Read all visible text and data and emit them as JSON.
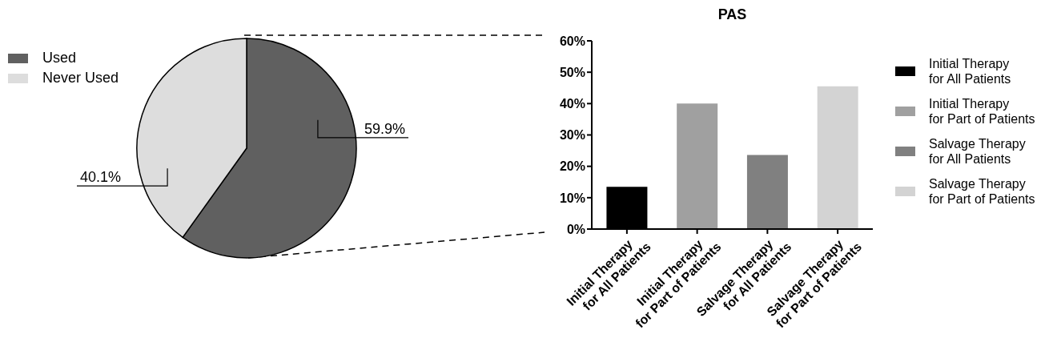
{
  "chart_data": [
    {
      "type": "pie",
      "categories": [
        "Used",
        "Never Used"
      ],
      "values": [
        59.9,
        40.1
      ],
      "colors": [
        "#606060",
        "#dddddd"
      ],
      "value_labels": [
        "59.9%",
        "40.1%"
      ],
      "legend": "top left"
    },
    {
      "type": "bar",
      "title": "PAS",
      "categories": [
        "Initial Therapy for All Patients",
        "Initial Therapy for Part of Patients",
        "Salvage Therapy for All Patients",
        "Salvage Therapy for Part of Patients"
      ],
      "stacked": true,
      "series": [
        {
          "name": "Initial Therapy for All Patients",
          "color": "#000000",
          "values": [
            13.5,
            null,
            null,
            null
          ]
        },
        {
          "name": "Initial Therapy for Part of Patients",
          "color": "#a0a0a0",
          "values": [
            null,
            40,
            null,
            null
          ]
        },
        {
          "name": "Salvage Therapy for All Patients",
          "color": "#808080",
          "values": [
            null,
            null,
            23.6,
            null
          ]
        },
        {
          "name": "Salvage Therapy for Part of Patients",
          "color": "#d3d3d3",
          "values": [
            null,
            null,
            null,
            45.5
          ]
        }
      ],
      "ylim": [
        0,
        60
      ],
      "yticks": [
        {
          "value": 0,
          "label": "0%"
        },
        {
          "value": 10,
          "label": "10%"
        },
        {
          "value": 20,
          "label": "20%"
        },
        {
          "value": 30,
          "label": "30%"
        },
        {
          "value": 40,
          "label": "40%"
        },
        {
          "value": 50,
          "label": "50%"
        },
        {
          "value": 60,
          "label": "60%"
        }
      ],
      "legend": "right"
    }
  ]
}
